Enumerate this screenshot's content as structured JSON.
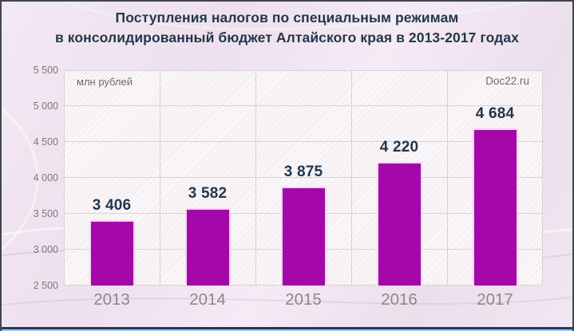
{
  "watermark": "Doc22.ru",
  "chart_data": {
    "type": "bar",
    "title": "Поступления налогов по специальным режимам в консолидированный бюджет Алтайского края в 2013-2017 годах",
    "title_lines": {
      "line1": "Поступления налогов по специальным режимам",
      "line2": "в консолидированный бюджет Алтайского края в 2013-2017 годах"
    },
    "unit_label": "млн рублей",
    "xlabel": "",
    "ylabel": "млн рублей",
    "categories": [
      "2013",
      "2014",
      "2015",
      "2016",
      "2017"
    ],
    "values": [
      3406,
      3582,
      3875,
      4220,
      4684
    ],
    "value_labels": [
      "3 406",
      "3 582",
      "3 875",
      "4 220",
      "4 684"
    ],
    "ylim": [
      2500,
      5500
    ],
    "ytick_step": 500,
    "ytick_labels_top_to_bottom": [
      "5 500",
      "5 000",
      "4 500",
      "4 000",
      "3 500",
      "3 000",
      "2 500"
    ],
    "grid": true,
    "legend": false,
    "colors": {
      "bar_fill": "#A407AA",
      "bar_edge": "#F3D7EF",
      "title_text": "#22374B",
      "value_label_text": "#21374F",
      "axis_tick_text": "#7C787C",
      "x_axis_text": "#8C888C",
      "unit_label_text": "#6E6A6E",
      "watermark_text": "#6E6A6E",
      "grid_line": "#D6D2D6",
      "plot_background": "#FFFFFF",
      "page_background": "#F0E4F0",
      "bottom_line_navy": "#223A60",
      "bottom_line_blue": "#A9C3E9"
    }
  }
}
